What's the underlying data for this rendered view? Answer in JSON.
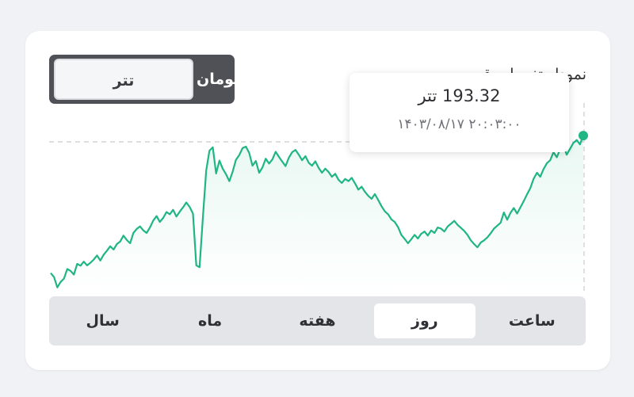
{
  "currency_toggle": {
    "active_label": "تتر",
    "inactive_label": "تومان"
  },
  "chart_title": "نمودار تغییرات قیمت",
  "tooltip": {
    "price": "193.32 تتر",
    "date": "۱۴۰۳/۰۸/۱۷ ۲۰:۰۳:۰۰"
  },
  "ranges": [
    {
      "label": "ساعت",
      "active": false
    },
    {
      "label": "روز",
      "active": true
    },
    {
      "label": "هفته",
      "active": false
    },
    {
      "label": "ماه",
      "active": false
    },
    {
      "label": "سال",
      "active": false
    }
  ],
  "colors": {
    "line": "#1fb584",
    "accent_dot": "#1fb584"
  },
  "chart_data": {
    "type": "area",
    "series": [
      {
        "values": [
          155.9,
          154.8,
          152.0,
          153.5,
          154.4,
          157.0,
          156.5,
          155.5,
          158.4,
          157.9,
          159.0,
          158.0,
          158.7,
          159.6,
          160.7,
          159.3,
          160.9,
          162.0,
          163.2,
          162.3,
          163.8,
          164.5,
          166.1,
          164.9,
          164.0,
          166.8,
          167.9,
          168.6,
          167.5,
          166.8,
          168.3,
          170.2,
          171.4,
          169.8,
          170.9,
          172.5,
          171.9,
          173.1,
          171.3,
          172.6,
          173.8,
          175.1,
          173.9,
          172.1,
          158.0,
          157.5,
          171.0,
          183.8,
          189.2,
          190.1,
          183.0,
          186.5,
          184.3,
          182.8,
          180.9,
          183.5,
          186.7,
          188.0,
          189.9,
          190.3,
          188.6,
          185.1,
          186.4,
          183.2,
          184.6,
          187.0,
          185.7,
          186.8,
          188.9,
          187.5,
          186.2,
          185.0,
          187.3,
          188.8,
          189.4,
          188.1,
          186.6,
          187.7,
          185.9,
          185.1,
          186.3,
          184.5,
          183.2,
          184.3,
          183.4,
          182.1,
          182.9,
          181.3,
          180.4,
          181.5,
          180.9,
          181.8,
          180.3,
          178.6,
          179.4,
          178.0,
          176.9,
          176.1,
          177.4,
          175.8,
          174.1,
          172.7,
          171.9,
          170.5,
          169.8,
          168.4,
          166.3,
          165.2,
          164.0,
          165.1,
          166.3,
          165.3,
          166.6,
          167.2,
          166.1,
          167.5,
          166.8,
          168.3,
          168.0,
          167.2,
          168.6,
          169.3,
          170.1,
          169.0,
          168.2,
          167.4,
          166.3,
          164.8,
          163.8,
          162.9,
          164.2,
          164.8,
          165.6,
          166.7,
          168.0,
          168.8,
          169.6,
          172.4,
          170.4,
          172.3,
          173.6,
          172.1,
          173.8,
          175.5,
          177.3,
          179.0,
          181.6,
          183.2,
          182.1,
          184.2,
          185.8,
          186.6,
          188.8,
          187.4,
          189.6,
          190.4,
          188.1,
          189.7,
          191.3,
          192.1,
          190.9,
          193.3
        ]
      }
    ],
    "xlabel": "",
    "ylabel": ""
  }
}
